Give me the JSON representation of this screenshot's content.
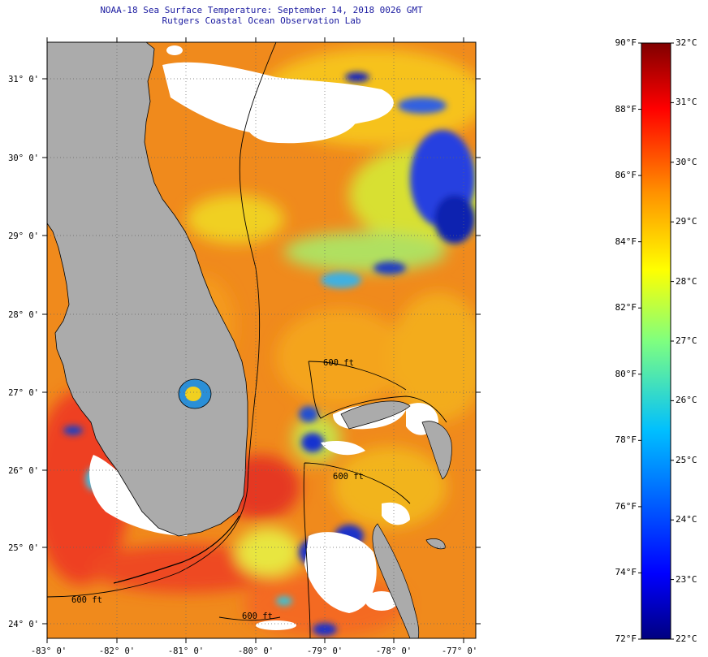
{
  "title_line1": "NOAA-18 Sea Surface Temperature:  September 14, 2018 0026 GMT",
  "title_line2": "Rutgers Coastal Ocean Observation Lab",
  "map": {
    "lon_range": [
      -83,
      -76.75
    ],
    "lat_range": [
      23.8,
      31.5
    ],
    "lat_ticks": [
      "31° 0'",
      "30° 0'",
      "29° 0'",
      "28° 0'",
      "27° 0'",
      "26° 0'",
      "25° 0'",
      "24° 0'"
    ],
    "lon_ticks": [
      "-83° 0'",
      "-82° 0'",
      "-81° 0'",
      "-80° 0'",
      "-79° 0'",
      "-78° 0'",
      "-77° 0'"
    ],
    "contour_labels": [
      "600 ft",
      "600 ft",
      "600 ft",
      "600 ft"
    ],
    "colors": {
      "land": "#ababab",
      "cloud": "#ffffff",
      "sea_warm": "#f08a1c"
    }
  },
  "colorbar": {
    "fahrenheit_labels": [
      "90°F",
      "88°F",
      "86°F",
      "84°F",
      "82°F",
      "80°F",
      "78°F",
      "76°F",
      "74°F",
      "72°F"
    ],
    "celsius_labels": [
      "32°C",
      "31°C",
      "30°C",
      "29°C",
      "28°C",
      "27°C",
      "26°C",
      "25°C",
      "24°C",
      "23°C",
      "22°C"
    ],
    "range_f": [
      72,
      90
    ],
    "range_c": [
      22,
      32
    ]
  }
}
